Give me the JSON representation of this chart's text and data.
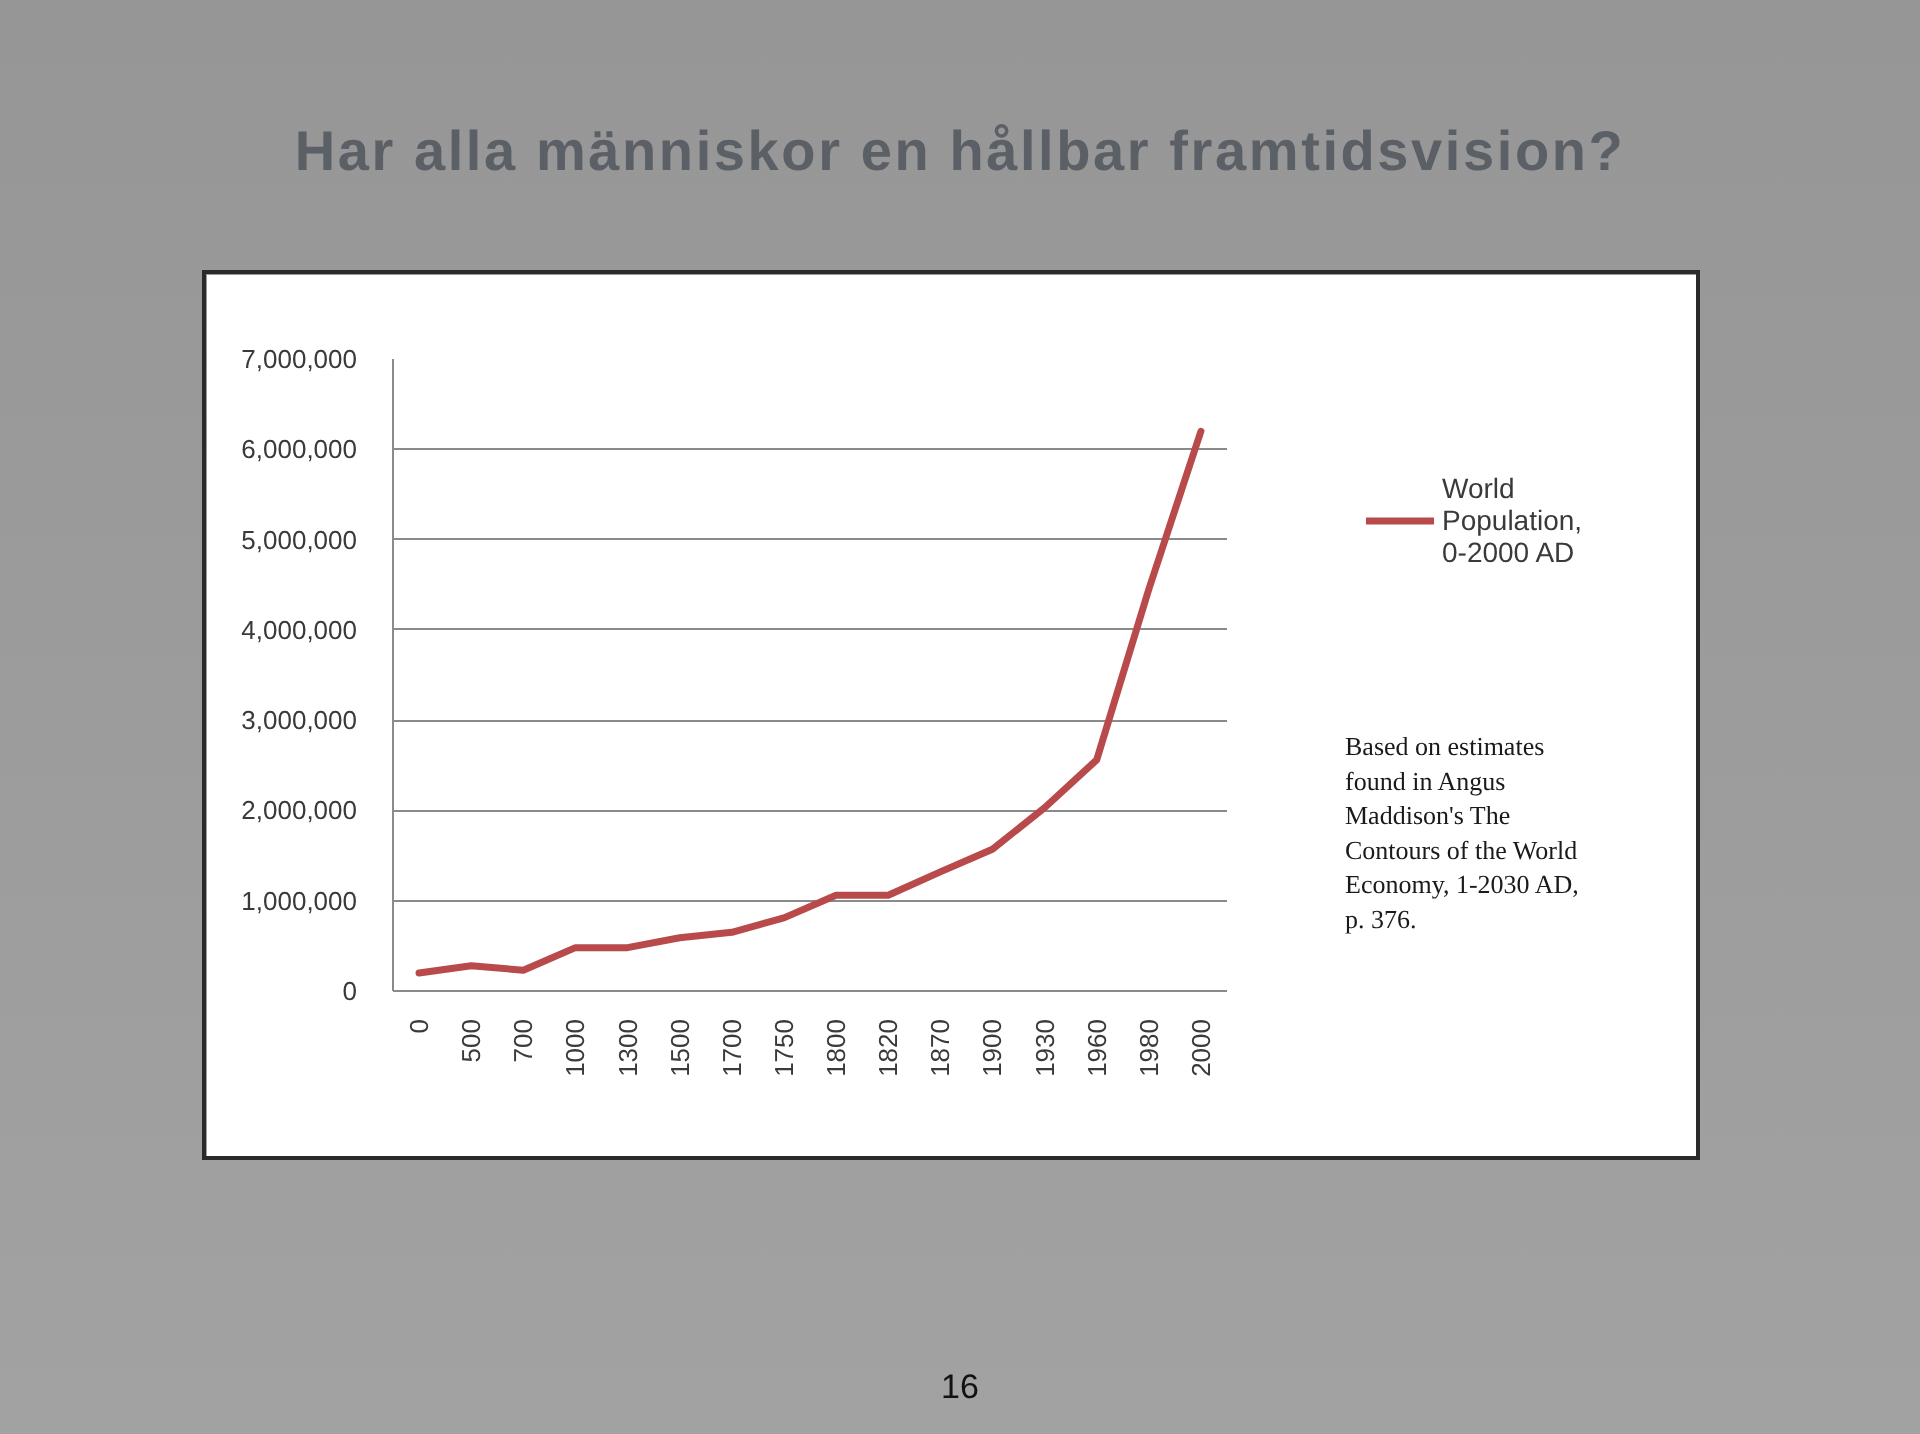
{
  "chart_data": {
    "type": "line",
    "title": "Har alla människor en hållbar framtidsvision?",
    "categories": [
      "0",
      "500",
      "700",
      "1000",
      "1300",
      "1500",
      "1700",
      "1750",
      "1800",
      "1820",
      "1870",
      "1900",
      "1930",
      "1960",
      "1980",
      "2000"
    ],
    "series": [
      {
        "name": "World Population, 0-2000 AD",
        "color": "#b94a4c",
        "values": [
          200000,
          280000,
          230000,
          480000,
          480000,
          590000,
          650000,
          810000,
          1060000,
          1060000,
          1320000,
          1570000,
          2030000,
          2560000,
          4450000,
          6200000
        ]
      }
    ],
    "ylim": [
      0,
      7000000
    ],
    "yticks": [
      {
        "value": 0,
        "label": "0"
      },
      {
        "value": 1000000,
        "label": "1,000,000"
      },
      {
        "value": 2000000,
        "label": "2,000,000"
      },
      {
        "value": 3000000,
        "label": "3,000,000"
      },
      {
        "value": 4000000,
        "label": "4,000,000"
      },
      {
        "value": 5000000,
        "label": "5,000,000"
      },
      {
        "value": 6000000,
        "label": "6,000,000"
      },
      {
        "value": 7000000,
        "label": "7,000,000"
      }
    ],
    "grid": "y",
    "legend": "right",
    "annotations": [
      "Based on estimates found in Angus Maddison's The Contours of the World Economy, 1-2030 AD, p. 376.",
      "16"
    ]
  }
}
